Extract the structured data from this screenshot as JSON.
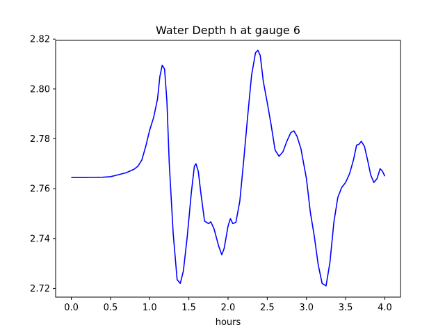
{
  "chart_data": {
    "type": "line",
    "title": "Water Depth h at gauge 6",
    "xlabel": "hours",
    "ylabel": "",
    "xlim": [
      -0.2,
      4.2
    ],
    "ylim": [
      2.7165,
      2.8195
    ],
    "xticks": [
      0.0,
      0.5,
      1.0,
      1.5,
      2.0,
      2.5,
      3.0,
      3.5,
      4.0
    ],
    "xtick_labels": [
      "0.0",
      "0.5",
      "1.0",
      "1.5",
      "2.0",
      "2.5",
      "3.0",
      "3.5",
      "4.0"
    ],
    "yticks": [
      2.72,
      2.74,
      2.76,
      2.78,
      2.8,
      2.82
    ],
    "ytick_labels": [
      "2.72",
      "2.74",
      "2.76",
      "2.78",
      "2.80",
      "2.82"
    ],
    "grid": false,
    "series": [
      {
        "color": "#0000ff",
        "x": [
          0.0,
          0.2,
          0.4,
          0.5,
          0.6,
          0.7,
          0.8,
          0.85,
          0.9,
          0.95,
          1.0,
          1.05,
          1.1,
          1.13,
          1.16,
          1.19,
          1.22,
          1.25,
          1.3,
          1.35,
          1.39,
          1.43,
          1.48,
          1.53,
          1.57,
          1.59,
          1.62,
          1.65,
          1.7,
          1.75,
          1.78,
          1.82,
          1.88,
          1.92,
          1.95,
          2.0,
          2.03,
          2.06,
          2.1,
          2.15,
          2.2,
          2.25,
          2.3,
          2.35,
          2.38,
          2.41,
          2.45,
          2.5,
          2.55,
          2.6,
          2.65,
          2.7,
          2.75,
          2.8,
          2.84,
          2.88,
          2.93,
          3.0,
          3.05,
          3.1,
          3.15,
          3.2,
          3.25,
          3.3,
          3.35,
          3.4,
          3.45,
          3.5,
          3.55,
          3.6,
          3.64,
          3.67,
          3.7,
          3.74,
          3.78,
          3.82,
          3.86,
          3.9,
          3.94,
          3.97,
          4.0
        ],
        "y": [
          2.7645,
          2.7645,
          2.7646,
          2.7648,
          2.7656,
          2.7664,
          2.7678,
          2.769,
          2.7715,
          2.777,
          2.7835,
          2.7885,
          2.796,
          2.805,
          2.8095,
          2.808,
          2.795,
          2.77,
          2.742,
          2.7235,
          2.722,
          2.727,
          2.741,
          2.758,
          2.769,
          2.77,
          2.767,
          2.759,
          2.747,
          2.746,
          2.7467,
          2.744,
          2.737,
          2.7335,
          2.736,
          2.745,
          2.748,
          2.746,
          2.7465,
          2.755,
          2.7715,
          2.789,
          2.8055,
          2.8145,
          2.8155,
          2.8135,
          2.803,
          2.7945,
          2.7855,
          2.7755,
          2.773,
          2.7748,
          2.779,
          2.7825,
          2.7832,
          2.781,
          2.776,
          2.764,
          2.7505,
          2.741,
          2.7295,
          2.722,
          2.721,
          2.7305,
          2.7465,
          2.7565,
          2.7605,
          2.7625,
          2.766,
          2.7715,
          2.7775,
          2.7778,
          2.779,
          2.777,
          2.7715,
          2.7655,
          2.7625,
          2.764,
          2.768,
          2.767,
          2.765
        ]
      }
    ]
  }
}
